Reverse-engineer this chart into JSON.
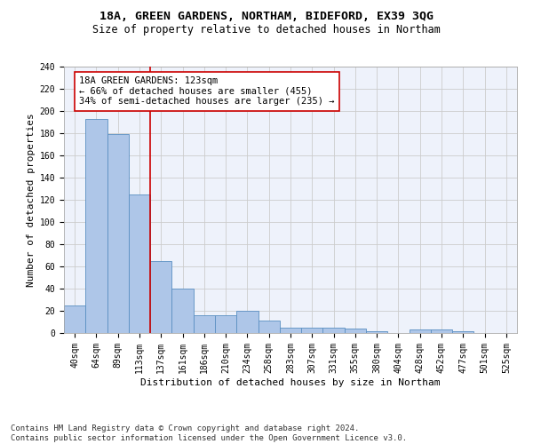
{
  "title1": "18A, GREEN GARDENS, NORTHAM, BIDEFORD, EX39 3QG",
  "title2": "Size of property relative to detached houses in Northam",
  "xlabel": "Distribution of detached houses by size in Northam",
  "ylabel": "Number of detached properties",
  "categories": [
    "40sqm",
    "64sqm",
    "89sqm",
    "113sqm",
    "137sqm",
    "161sqm",
    "186sqm",
    "210sqm",
    "234sqm",
    "258sqm",
    "283sqm",
    "307sqm",
    "331sqm",
    "355sqm",
    "380sqm",
    "404sqm",
    "428sqm",
    "452sqm",
    "477sqm",
    "501sqm",
    "525sqm"
  ],
  "values": [
    25,
    193,
    179,
    125,
    65,
    40,
    16,
    16,
    20,
    11,
    5,
    5,
    5,
    4,
    2,
    0,
    3,
    3,
    2,
    0,
    0
  ],
  "bar_color": "#aec6e8",
  "bar_edge_color": "#5a8fc2",
  "annotation_line1": "18A GREEN GARDENS: 123sqm",
  "annotation_line2": "← 66% of detached houses are smaller (455)",
  "annotation_line3": "34% of semi-detached houses are larger (235) →",
  "vline_color": "#cc0000",
  "vline_position": 3.5,
  "annotation_box_color": "#ffffff",
  "annotation_box_edge": "#cc0000",
  "footer_text": "Contains HM Land Registry data © Crown copyright and database right 2024.\nContains public sector information licensed under the Open Government Licence v3.0.",
  "ylim": [
    0,
    240
  ],
  "yticks": [
    0,
    20,
    40,
    60,
    80,
    100,
    120,
    140,
    160,
    180,
    200,
    220,
    240
  ],
  "title1_fontsize": 9.5,
  "title2_fontsize": 8.5,
  "axis_label_fontsize": 8,
  "tick_fontsize": 7,
  "annotation_fontsize": 7.5,
  "footer_fontsize": 6.5,
  "background_color": "#eef2fb"
}
